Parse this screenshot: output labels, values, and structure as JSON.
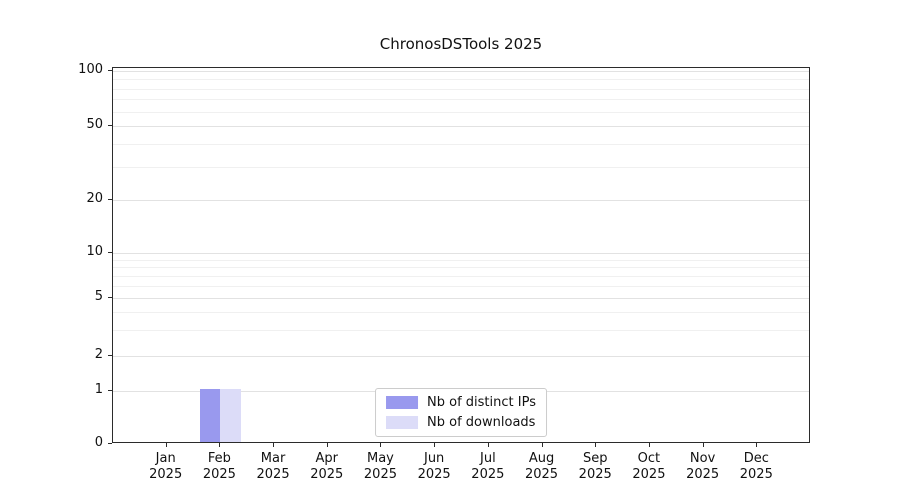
{
  "chart_data": {
    "type": "bar",
    "title": "ChronosDSTools 2025",
    "categories": [
      "Jan",
      "Feb",
      "Mar",
      "Apr",
      "May",
      "Jun",
      "Jul",
      "Aug",
      "Sep",
      "Oct",
      "Nov",
      "Dec"
    ],
    "x_year_label": "2025",
    "series": [
      {
        "name": "Nb of distinct IPs",
        "color": "#9999ee",
        "values": [
          0,
          1,
          0,
          0,
          0,
          0,
          0,
          0,
          0,
          0,
          0,
          0
        ]
      },
      {
        "name": "Nb of downloads",
        "color": "#dcdcf8",
        "values": [
          0,
          1,
          0,
          0,
          0,
          0,
          0,
          0,
          0,
          0,
          0,
          0
        ]
      }
    ],
    "yscale": "symlog",
    "ylim": [
      0,
      100
    ],
    "yticks": [
      0,
      1,
      2,
      5,
      10,
      20,
      50,
      100
    ],
    "minor_yticks": [
      3,
      4,
      6,
      7,
      8,
      9,
      30,
      40,
      60,
      70,
      80,
      90
    ],
    "grid": true,
    "legend_position": "lower center"
  }
}
